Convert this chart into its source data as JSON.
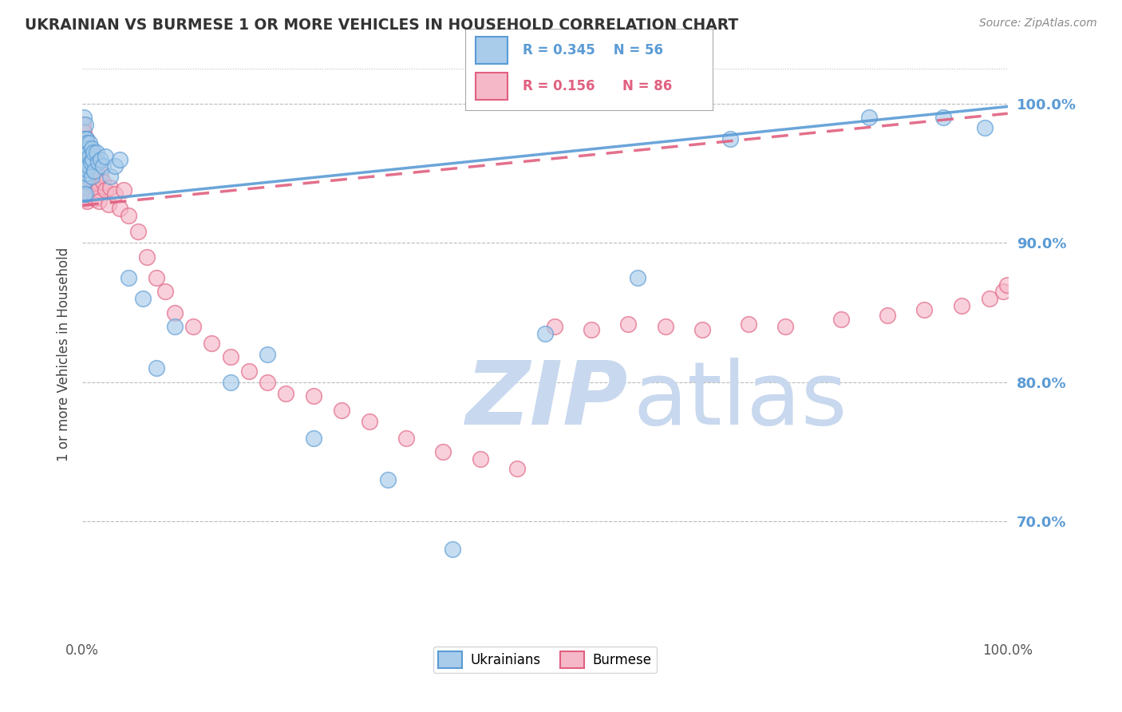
{
  "title": "UKRAINIAN VS BURMESE 1 OR MORE VEHICLES IN HOUSEHOLD CORRELATION CHART",
  "source": "Source: ZipAtlas.com",
  "ylabel": "1 or more Vehicles in Household",
  "xlim": [
    0.0,
    1.0
  ],
  "ylim": [
    0.615,
    1.025
  ],
  "yticks": [
    0.7,
    0.8,
    0.9,
    1.0
  ],
  "ytick_labels": [
    "70.0%",
    "80.0%",
    "90.0%",
    "100.0%"
  ],
  "legend_entries": [
    "Ukrainians",
    "Burmese"
  ],
  "legend_r_ukrainian": "R = 0.345",
  "legend_n_ukrainian": "N = 56",
  "legend_r_burmese": "R = 0.156",
  "legend_n_burmese": "N = 86",
  "color_ukrainian": "#A8CCEA",
  "color_burmese": "#F5B8C8",
  "line_color_ukrainian": "#5B9BD5",
  "line_color_burmese": "#E06080",
  "background_color": "#FFFFFF",
  "watermark_color": "#C8D8EE",
  "ukr_trend_x": [
    0.0,
    1.0
  ],
  "ukr_trend_y": [
    0.93,
    0.998
  ],
  "bur_trend_x": [
    0.0,
    1.0
  ],
  "bur_trend_y": [
    0.927,
    0.993
  ],
  "ukr_x": [
    0.001,
    0.001,
    0.001,
    0.002,
    0.002,
    0.002,
    0.002,
    0.002,
    0.002,
    0.003,
    0.003,
    0.003,
    0.003,
    0.003,
    0.003,
    0.004,
    0.004,
    0.004,
    0.005,
    0.005,
    0.005,
    0.006,
    0.006,
    0.007,
    0.007,
    0.008,
    0.008,
    0.009,
    0.01,
    0.01,
    0.011,
    0.012,
    0.013,
    0.015,
    0.017,
    0.02,
    0.022,
    0.025,
    0.03,
    0.035,
    0.04,
    0.05,
    0.065,
    0.08,
    0.1,
    0.16,
    0.2,
    0.25,
    0.33,
    0.4,
    0.5,
    0.6,
    0.7,
    0.85,
    0.93,
    0.975
  ],
  "ukr_y": [
    0.97,
    0.96,
    0.95,
    0.99,
    0.975,
    0.965,
    0.955,
    0.945,
    0.935,
    0.985,
    0.975,
    0.965,
    0.955,
    0.945,
    0.935,
    0.975,
    0.96,
    0.95,
    0.972,
    0.963,
    0.953,
    0.968,
    0.958,
    0.965,
    0.955,
    0.972,
    0.962,
    0.958,
    0.968,
    0.948,
    0.96,
    0.965,
    0.952,
    0.965,
    0.958,
    0.96,
    0.955,
    0.962,
    0.948,
    0.955,
    0.96,
    0.875,
    0.86,
    0.81,
    0.84,
    0.8,
    0.82,
    0.76,
    0.73,
    0.68,
    0.835,
    0.875,
    0.975,
    0.99,
    0.99,
    0.983
  ],
  "bur_x": [
    0.001,
    0.001,
    0.001,
    0.001,
    0.002,
    0.002,
    0.002,
    0.002,
    0.002,
    0.002,
    0.003,
    0.003,
    0.003,
    0.003,
    0.003,
    0.003,
    0.003,
    0.004,
    0.004,
    0.004,
    0.004,
    0.005,
    0.005,
    0.005,
    0.005,
    0.006,
    0.006,
    0.006,
    0.007,
    0.007,
    0.007,
    0.008,
    0.008,
    0.009,
    0.009,
    0.01,
    0.01,
    0.011,
    0.012,
    0.013,
    0.014,
    0.015,
    0.016,
    0.017,
    0.018,
    0.02,
    0.022,
    0.025,
    0.028,
    0.03,
    0.035,
    0.04,
    0.045,
    0.05,
    0.06,
    0.07,
    0.08,
    0.09,
    0.1,
    0.12,
    0.14,
    0.16,
    0.18,
    0.2,
    0.22,
    0.25,
    0.28,
    0.31,
    0.35,
    0.39,
    0.43,
    0.47,
    0.51,
    0.55,
    0.59,
    0.63,
    0.67,
    0.72,
    0.76,
    0.82,
    0.87,
    0.91,
    0.95,
    0.98,
    0.995,
    0.999
  ],
  "bur_y": [
    0.985,
    0.975,
    0.965,
    0.94,
    0.98,
    0.97,
    0.963,
    0.958,
    0.948,
    0.938,
    0.975,
    0.968,
    0.962,
    0.958,
    0.948,
    0.94,
    0.932,
    0.975,
    0.965,
    0.96,
    0.95,
    0.968,
    0.96,
    0.952,
    0.93,
    0.968,
    0.96,
    0.94,
    0.965,
    0.958,
    0.936,
    0.96,
    0.95,
    0.965,
    0.945,
    0.96,
    0.948,
    0.958,
    0.948,
    0.94,
    0.932,
    0.952,
    0.944,
    0.938,
    0.93,
    0.95,
    0.944,
    0.938,
    0.928,
    0.94,
    0.935,
    0.925,
    0.938,
    0.92,
    0.908,
    0.89,
    0.875,
    0.865,
    0.85,
    0.84,
    0.828,
    0.818,
    0.808,
    0.8,
    0.792,
    0.79,
    0.78,
    0.772,
    0.76,
    0.75,
    0.745,
    0.738,
    0.84,
    0.838,
    0.842,
    0.84,
    0.838,
    0.842,
    0.84,
    0.845,
    0.848,
    0.852,
    0.855,
    0.86,
    0.865,
    0.87
  ]
}
